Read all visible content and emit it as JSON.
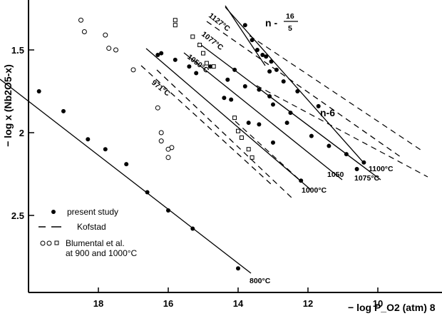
{
  "chart_data": {
    "type": "scatter",
    "xlabel": "− log P_O2 (atm) 8",
    "ylabel": "− log x (Nb2O5-x)",
    "xlim": [
      20,
      7.8
    ],
    "ylim": [
      3.0,
      1.3
    ],
    "x_reversed": true,
    "y_reversed": true,
    "x_ticks": [
      "18",
      "16",
      "14",
      "12",
      "10"
    ],
    "y_ticks": [
      "1.5",
      "2",
      "2.5"
    ],
    "grid": false,
    "legend_position": "bottom-left",
    "legend": [
      {
        "label": "present study",
        "marker": "filled-circle"
      },
      {
        "label": "Kofstad",
        "marker": "dashed-line"
      },
      {
        "label": "Blumental et al.\nat 900 and 1000°C",
        "marker": "open-circle-square"
      }
    ],
    "annotations": {
      "slope_16_5": {
        "n_prefix": "n -",
        "numerator": "16",
        "denominator": "5"
      },
      "slope_6": "n-6"
    },
    "series": [
      {
        "temperature_label": "800°C",
        "marker": "filled",
        "fit": "solid",
        "x": [
          19.7,
          19.0,
          18.3,
          17.8,
          17.2,
          16.6,
          16.0,
          15.3,
          14.0
        ],
        "y": [
          1.75,
          1.87,
          2.04,
          2.1,
          2.19,
          2.36,
          2.47,
          2.58,
          2.82
        ]
      },
      {
        "temperature_label": "971°C",
        "marker": "filled",
        "fit": "dashed",
        "x": [
          16.3,
          15.4,
          14.2,
          13.4
        ],
        "y": [
          1.53,
          1.6,
          1.8,
          1.95
        ]
      },
      {
        "temperature_label": "1000°C",
        "marker": "filled",
        "fit": "solid",
        "x": [
          16.2,
          15.8,
          15.2,
          14.4,
          13.7,
          13.0,
          12.2
        ],
        "y": [
          1.52,
          1.56,
          1.64,
          1.79,
          1.94,
          2.06,
          2.29
        ]
      },
      {
        "temperature_label": "1050°C",
        "marker": "filled",
        "fit": "solid",
        "x": [
          14.8,
          14.3,
          13.8,
          13.1,
          12.6,
          11.9,
          10.9
        ],
        "y": [
          1.6,
          1.68,
          1.72,
          1.78,
          1.94,
          2.02,
          2.13
        ]
      },
      {
        "temperature_label": "1075°C",
        "marker": "filled",
        "fit": "solid",
        "x": [
          14.1,
          13.4,
          13.0,
          12.5,
          11.4,
          10.6
        ],
        "y": [
          1.62,
          1.74,
          1.83,
          1.88,
          2.08,
          2.22
        ]
      },
      {
        "temperature_label": "1100°C",
        "marker": "filled",
        "fit": "solid",
        "x": [
          13.1,
          12.7,
          12.3,
          11.7,
          10.4
        ],
        "y": [
          1.63,
          1.69,
          1.75,
          1.84,
          2.18
        ]
      },
      {
        "temperature_label": "1127°C",
        "marker": "filled",
        "fit": "solid",
        "x": [
          13.8,
          13.6,
          13.45,
          13.3,
          13.2,
          13.05,
          12.9
        ],
        "y": [
          1.35,
          1.44,
          1.5,
          1.53,
          1.54,
          1.57,
          1.62
        ]
      },
      {
        "temperature_label": "1077°C",
        "marker": "none",
        "fit": "dashed",
        "x": [
          14.4,
          12.6,
          10.9
        ],
        "y": [
          1.43,
          1.73,
          1.98
        ]
      },
      {
        "temperature_label": "Kofstad",
        "marker": "none",
        "fit": "dashed",
        "x": [
          17.8,
          16.2,
          13.8,
          12.0,
          10.2
        ],
        "y": [
          1.52,
          1.68,
          1.95,
          2.15,
          2.36
        ]
      },
      {
        "temperature_label": "Blumental et al. 900 and 1000°C",
        "marker": "open-circle",
        "x": [
          18.5,
          18.4,
          17.8,
          17.7,
          17.5,
          17.0,
          16.3,
          16.2,
          16.2,
          15.9,
          16.0,
          16.0
        ],
        "y": [
          1.32,
          1.39,
          1.41,
          1.49,
          1.5,
          1.62,
          1.85,
          2.05,
          2.0,
          2.09,
          2.1,
          2.15
        ]
      },
      {
        "temperature_label": "Blumental et al. 900 and 1000°C",
        "marker": "open-square",
        "x": [
          15.8,
          15.8,
          15.3,
          15.1,
          15.0,
          14.9,
          14.7,
          14.0,
          13.9,
          13.7,
          13.6,
          14.1
        ],
        "y": [
          1.32,
          1.35,
          1.42,
          1.47,
          1.52,
          1.58,
          1.6,
          1.99,
          2.03,
          2.1,
          2.15,
          1.91
        ]
      }
    ]
  }
}
